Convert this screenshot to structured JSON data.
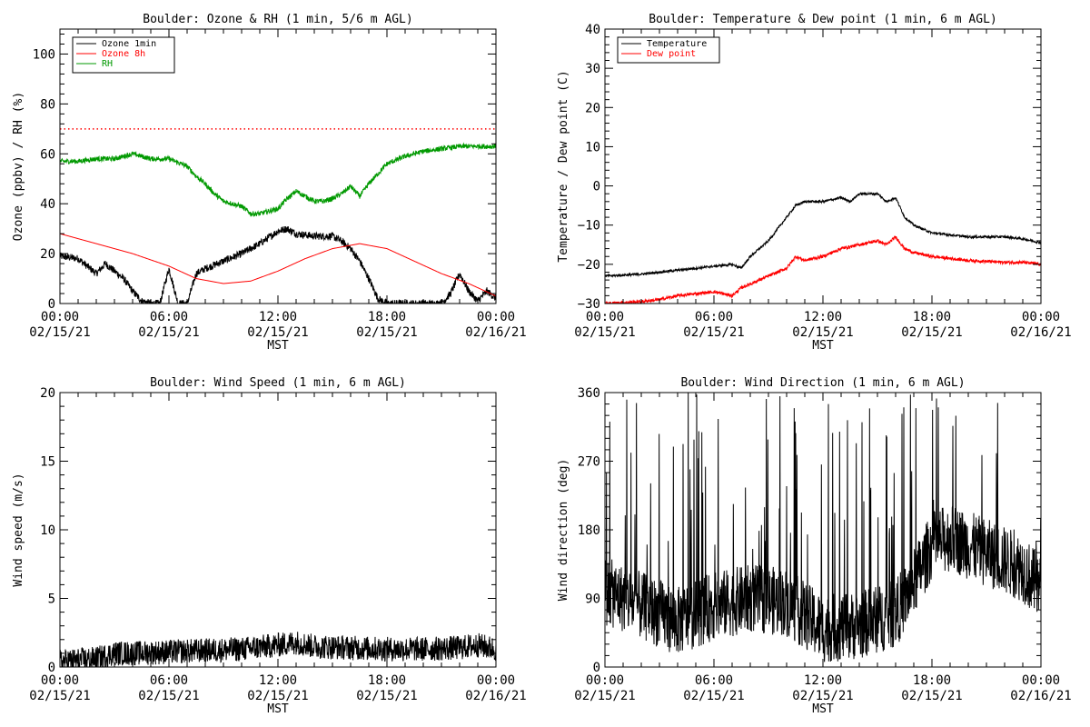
{
  "chart_data": [
    {
      "type": "line",
      "title": "Boulder: Ozone & RH (1 min, 5/6 m AGL)",
      "xlabel": "MST",
      "ylabel": "Ozone (ppbv) / RH (%)",
      "xlim": [
        0,
        24
      ],
      "ylim": [
        0,
        110
      ],
      "x_ticks": [
        0,
        6,
        12,
        18,
        24
      ],
      "x_tick_labels": [
        [
          "00:00",
          "02/15/21"
        ],
        [
          "06:00",
          "02/15/21"
        ],
        [
          "12:00",
          "02/15/21"
        ],
        [
          "18:00",
          "02/15/21"
        ],
        [
          "00:00",
          "02/16/21"
        ]
      ],
      "y_ticks": [
        0,
        20,
        40,
        60,
        80,
        100
      ],
      "y_tick_labels": [
        "0",
        "20",
        "40",
        "60",
        "80",
        "100"
      ],
      "legend": "top-left",
      "reference_line": {
        "y": 70,
        "color": "#ff0000",
        "style": "dotted"
      },
      "series": [
        {
          "name": "Ozone 1min",
          "color": "#000000",
          "noise": 1.5,
          "x": [
            0,
            1,
            1.5,
            2,
            2.5,
            3,
            3.5,
            4,
            4.5,
            5,
            5.5,
            6,
            6.5,
            7,
            7.5,
            8,
            9,
            10,
            11,
            12,
            12.5,
            13,
            14,
            15,
            15.5,
            16,
            16.5,
            17,
            17.5,
            18,
            19,
            20,
            21,
            21.5,
            22,
            22.5,
            23,
            23.5,
            24
          ],
          "y": [
            19,
            18,
            15,
            12,
            16,
            13,
            10,
            5,
            1,
            0,
            0,
            14,
            0,
            0,
            12,
            14,
            17,
            20,
            24,
            29,
            30,
            28,
            27,
            27,
            25,
            22,
            17,
            10,
            2,
            0,
            0,
            0,
            0,
            4,
            12,
            5,
            1,
            5,
            2
          ]
        },
        {
          "name": "Ozone 8h",
          "color": "#ff0000",
          "noise": 0,
          "x": [
            0,
            2,
            4,
            6,
            7.5,
            9,
            10.5,
            12,
            13.5,
            15,
            16.5,
            18,
            19.5,
            21,
            22.5,
            24
          ],
          "y": [
            28,
            24,
            20,
            15,
            10,
            8,
            9,
            13,
            18,
            22,
            24,
            22,
            17,
            12,
            8,
            3
          ]
        },
        {
          "name": "RH",
          "color": "#009900",
          "noise": 1,
          "x": [
            0,
            1,
            2,
            3,
            4,
            5,
            6,
            7,
            7.5,
            8,
            8.5,
            9,
            9.5,
            10,
            10.5,
            11,
            11.5,
            12,
            12.5,
            13,
            13.5,
            14,
            14.5,
            15,
            15.5,
            16,
            16.5,
            17,
            17.5,
            18,
            19,
            20,
            21,
            22,
            23,
            24
          ],
          "y": [
            57,
            57,
            58,
            58,
            60,
            58,
            58,
            55,
            51,
            48,
            44,
            41,
            40,
            39,
            36,
            36,
            37,
            38,
            42,
            45,
            43,
            41,
            41,
            42,
            44,
            47,
            43,
            48,
            52,
            56,
            59,
            61,
            62,
            63,
            63,
            63
          ]
        }
      ]
    },
    {
      "type": "line",
      "title": "Boulder: Temperature & Dew point (1 min, 6 m AGL)",
      "xlabel": "MST",
      "ylabel": "Temperature / Dew point (C)",
      "xlim": [
        0,
        24
      ],
      "ylim": [
        -30,
        40
      ],
      "x_ticks": [
        0,
        6,
        12,
        18,
        24
      ],
      "x_tick_labels": [
        [
          "00:00",
          "02/15/21"
        ],
        [
          "06:00",
          "02/15/21"
        ],
        [
          "12:00",
          "02/15/21"
        ],
        [
          "18:00",
          "02/15/21"
        ],
        [
          "00:00",
          "02/16/21"
        ]
      ],
      "y_ticks": [
        -30,
        -20,
        -10,
        0,
        10,
        20,
        30,
        40
      ],
      "y_tick_labels": [
        "−30",
        "−20",
        "−10",
        "0",
        "10",
        "20",
        "30",
        "40"
      ],
      "legend": "top-left",
      "series": [
        {
          "name": "Temperature",
          "color": "#000000",
          "noise": 0.3,
          "x": [
            0,
            2,
            4,
            6,
            7,
            7.5,
            8,
            9,
            10,
            10.5,
            11,
            12,
            13,
            13.5,
            14,
            15,
            15.5,
            16,
            16.5,
            17,
            18,
            19,
            20,
            21,
            22,
            23,
            23.5,
            24
          ],
          "y": [
            -23,
            -22.5,
            -21.5,
            -20.5,
            -20,
            -21,
            -18,
            -14,
            -8,
            -5,
            -4,
            -4,
            -3,
            -4,
            -2,
            -2,
            -4,
            -3,
            -8,
            -10,
            -12,
            -12.5,
            -13,
            -13,
            -13,
            -13.5,
            -14,
            -14.5
          ]
        },
        {
          "name": "Dew point",
          "color": "#ff0000",
          "noise": 0.4,
          "x": [
            0,
            2,
            3,
            4,
            5,
            6,
            7,
            7.5,
            8,
            9,
            10,
            10.5,
            11,
            12,
            13,
            14,
            15,
            15.5,
            16,
            16.5,
            17,
            18,
            20,
            22,
            23,
            24
          ],
          "y": [
            -30,
            -29.5,
            -29,
            -28,
            -27.5,
            -27,
            -28,
            -26,
            -25,
            -23,
            -21,
            -18,
            -19,
            -18,
            -16,
            -15,
            -14,
            -15,
            -13,
            -16,
            -17,
            -18,
            -19,
            -19.5,
            -19.5,
            -20
          ]
        }
      ]
    },
    {
      "type": "line",
      "title": "Boulder: Wind Speed (1 min, 6 m AGL)",
      "xlabel": "MST",
      "ylabel": "Wind speed (m/s)",
      "xlim": [
        0,
        24
      ],
      "ylim": [
        0,
        20
      ],
      "x_ticks": [
        0,
        6,
        12,
        18,
        24
      ],
      "x_tick_labels": [
        [
          "00:00",
          "02/15/21"
        ],
        [
          "06:00",
          "02/15/21"
        ],
        [
          "12:00",
          "02/15/21"
        ],
        [
          "18:00",
          "02/15/21"
        ],
        [
          "00:00",
          "02/16/21"
        ]
      ],
      "y_ticks": [
        0,
        5,
        10,
        15,
        20
      ],
      "y_tick_labels": [
        "0",
        "5",
        "10",
        "15",
        "20"
      ],
      "series": [
        {
          "name": "",
          "color": "#000000",
          "noise": 0.9,
          "x": [
            0,
            2,
            3,
            4,
            6,
            8,
            10,
            12,
            13,
            14,
            16,
            18,
            20,
            22,
            23,
            24
          ],
          "y": [
            0.4,
            0.6,
            1.0,
            1.0,
            1.1,
            1.2,
            1.3,
            1.6,
            1.8,
            1.5,
            1.4,
            1.3,
            1.3,
            1.4,
            1.6,
            1.3
          ]
        }
      ]
    },
    {
      "type": "line",
      "title": "Boulder: Wind Direction (1 min, 6 m AGL)",
      "xlabel": "MST",
      "ylabel": "Wind direction (deg)",
      "xlim": [
        0,
        24
      ],
      "ylim": [
        0,
        360
      ],
      "x_ticks": [
        0,
        6,
        12,
        18,
        24
      ],
      "x_tick_labels": [
        [
          "00:00",
          "02/15/21"
        ],
        [
          "06:00",
          "02/15/21"
        ],
        [
          "12:00",
          "02/15/21"
        ],
        [
          "18:00",
          "02/15/21"
        ],
        [
          "00:00",
          "02/16/21"
        ]
      ],
      "y_ticks": [
        0,
        90,
        180,
        270,
        360
      ],
      "y_tick_labels": [
        "0",
        "90",
        "180",
        "270",
        "360"
      ],
      "series": [
        {
          "name": "",
          "color": "#000000",
          "noise": 45,
          "spike_rate": 0.06,
          "x": [
            0,
            2,
            4,
            6,
            8,
            10,
            12,
            14,
            16,
            17,
            18,
            19,
            20,
            21,
            22,
            23,
            24
          ],
          "y": [
            100,
            80,
            60,
            80,
            90,
            85,
            50,
            55,
            70,
            110,
            160,
            170,
            160,
            150,
            140,
            130,
            100
          ]
        }
      ]
    }
  ]
}
